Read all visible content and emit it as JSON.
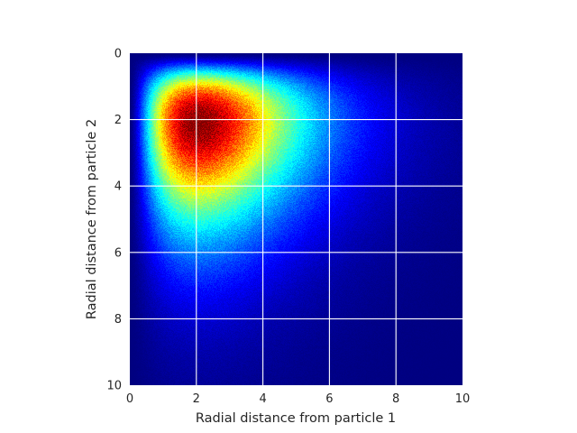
{
  "chart_data": {
    "type": "heatmap",
    "title": "",
    "xlabel": "Radial distance from particle 1",
    "ylabel": "Radial distance from particle 2",
    "xlim": [
      0,
      10
    ],
    "ylim": [
      0,
      10
    ],
    "y_inverted": true,
    "x_ticks": [
      0,
      2,
      4,
      6,
      8,
      10
    ],
    "y_ticks": [
      0,
      2,
      4,
      6,
      8,
      10
    ],
    "x_tick_labels": [
      "0",
      "2",
      "4",
      "6",
      "8",
      "10"
    ],
    "y_tick_labels": [
      "0",
      "2",
      "4",
      "6",
      "8",
      "10"
    ],
    "grid": true,
    "colormap": "jet",
    "peak": {
      "x": 2.1,
      "y": 2.1
    },
    "spread": {
      "x": 1.2,
      "y": 1.25
    },
    "background_color": "#00007f",
    "grid_color": "#ffffff"
  }
}
